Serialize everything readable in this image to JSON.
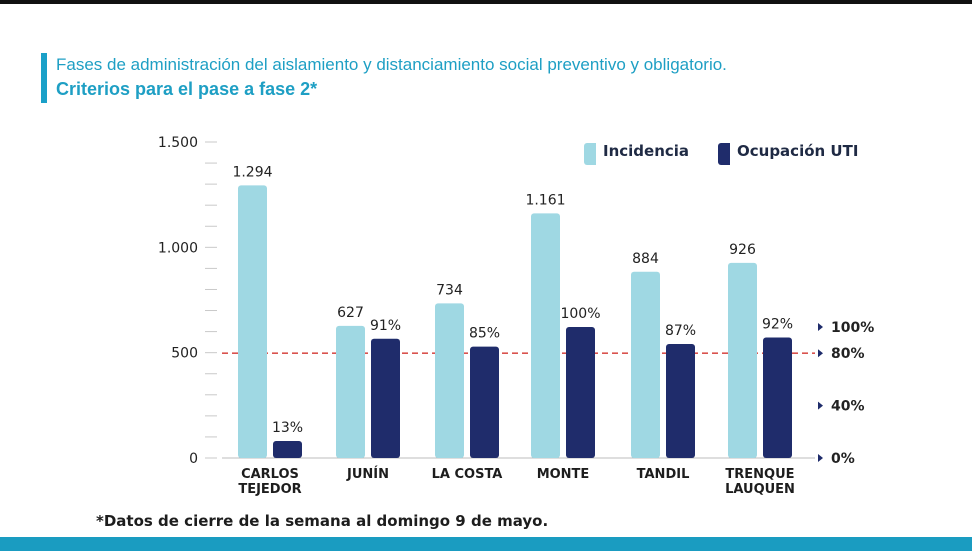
{
  "header": {
    "subtitle": "Fases de administración del aislamiento y distanciamiento social preventivo y obligatorio.",
    "title": "Criterios para el pase a fase 2*"
  },
  "footnote": "*Datos de cierre de la semana al domingo 9 de mayo.",
  "colors": {
    "incidencia": "#9fd8e3",
    "ocupacion": "#1f2c6b",
    "threshold": "#d9534f",
    "accent": "#1aa0c8"
  },
  "chart_data": {
    "type": "bar",
    "categories": [
      "CARLOS\nTEJEDOR",
      "JUNÍN",
      "LA COSTA",
      "MONTE",
      "TANDIL",
      "TRENQUE\nLAUQUEN"
    ],
    "series": [
      {
        "name": "Incidencia",
        "values": [
          1294,
          627,
          734,
          1161,
          884,
          926
        ],
        "labels": [
          "1.294",
          "627",
          "734",
          "1.161",
          "884",
          "926"
        ],
        "axis": "left"
      },
      {
        "name": "Ocupación UTI",
        "values": [
          13,
          91,
          85,
          100,
          87,
          92
        ],
        "labels": [
          "13%",
          "91%",
          "85%",
          "100%",
          "87%",
          "92%"
        ],
        "axis": "right"
      }
    ],
    "y_left": {
      "ticks": [
        0,
        500,
        1000,
        1500
      ],
      "tick_labels": [
        "0",
        "500",
        "1.000",
        "1.500"
      ],
      "ylim": [
        0,
        1500
      ]
    },
    "y_right": {
      "ticks": [
        0,
        40,
        80,
        100
      ],
      "tick_labels": [
        "0%",
        "40%",
        "80%",
        "100%"
      ]
    },
    "threshold": {
      "value_percent": 80,
      "style": "dashed"
    },
    "legend": {
      "position": "top-right",
      "entries": [
        "Incidencia",
        "Ocupación UTI"
      ]
    },
    "grid": false
  }
}
